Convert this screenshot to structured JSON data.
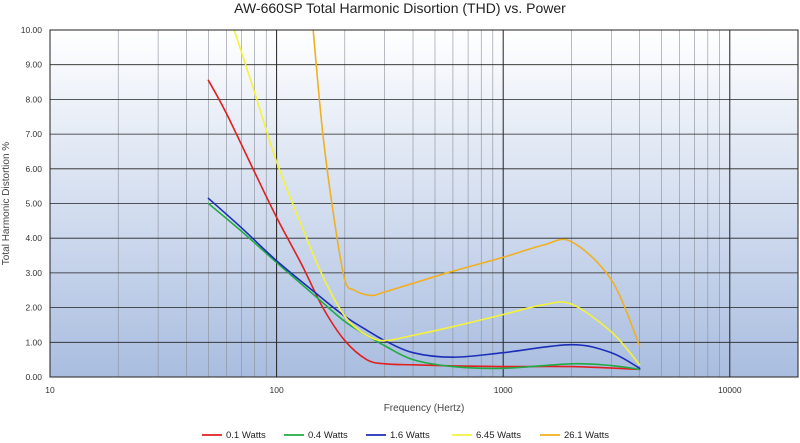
{
  "chart_data": {
    "type": "line",
    "title": "AW-660SP Total Harmonic Disortion (THD)  vs. Power",
    "xlabel": "Frequency (Hertz)",
    "ylabel": "Total Harmonic Distortion %",
    "x_scale": "log",
    "xlim": [
      10,
      20000
    ],
    "ylim": [
      0,
      10
    ],
    "x_tick_labels": [
      "10",
      "100",
      "1000",
      "10000"
    ],
    "x_tick_values": [
      10,
      100,
      1000,
      10000
    ],
    "y_tick_labels": [
      "0.00",
      "1.00",
      "2.00",
      "3.00",
      "4.00",
      "5.00",
      "6.00",
      "7.00",
      "8.00",
      "9.00",
      "10.00"
    ],
    "y_tick_values": [
      0,
      1,
      2,
      3,
      4,
      5,
      6,
      7,
      8,
      9,
      10
    ],
    "grid": true,
    "legend_position": "bottom",
    "plot_background": [
      "#ffffff",
      "#a9bde0"
    ],
    "series": [
      {
        "name": "0.1 Watts",
        "color": "#e02020",
        "x": [
          50,
          60,
          80,
          100,
          130,
          160,
          200,
          250,
          300,
          400,
          600,
          1000,
          2000,
          4000
        ],
        "y": [
          8.55,
          7.6,
          5.9,
          4.6,
          3.2,
          2.0,
          1.05,
          0.5,
          0.38,
          0.35,
          0.32,
          0.3,
          0.3,
          0.22
        ]
      },
      {
        "name": "0.4 Watts",
        "color": "#22aa44",
        "x": [
          50,
          70,
          100,
          150,
          200,
          250,
          300,
          400,
          600,
          1000,
          2000,
          3000,
          4000
        ],
        "y": [
          5.0,
          4.2,
          3.3,
          2.3,
          1.6,
          1.2,
          0.9,
          0.5,
          0.3,
          0.25,
          0.38,
          0.33,
          0.22
        ]
      },
      {
        "name": "1.6 Watts",
        "color": "#1c2eb8",
        "x": [
          50,
          70,
          100,
          150,
          200,
          250,
          300,
          400,
          600,
          1000,
          2000,
          3000,
          4000
        ],
        "y": [
          5.15,
          4.3,
          3.35,
          2.4,
          1.75,
          1.35,
          1.05,
          0.7,
          0.57,
          0.7,
          0.93,
          0.7,
          0.25
        ]
      },
      {
        "name": "6.45 Watts",
        "color": "#f5f23a",
        "x": [
          65,
          80,
          100,
          130,
          160,
          200,
          250,
          300,
          400,
          600,
          1000,
          1500,
          2000,
          3000,
          4000
        ],
        "y": [
          10.0,
          8.2,
          6.2,
          4.3,
          2.9,
          1.75,
          1.2,
          1.05,
          1.2,
          1.45,
          1.8,
          2.08,
          2.1,
          1.3,
          0.35
        ]
      },
      {
        "name": "26.1 Watts",
        "color": "#f0b020",
        "x": [
          145,
          160,
          180,
          200,
          220,
          260,
          300,
          400,
          600,
          1000,
          1500,
          2000,
          3000,
          4000
        ],
        "y": [
          10.0,
          7.0,
          4.5,
          2.8,
          2.5,
          2.35,
          2.45,
          2.7,
          3.05,
          3.45,
          3.8,
          3.9,
          2.8,
          0.9
        ]
      }
    ]
  }
}
